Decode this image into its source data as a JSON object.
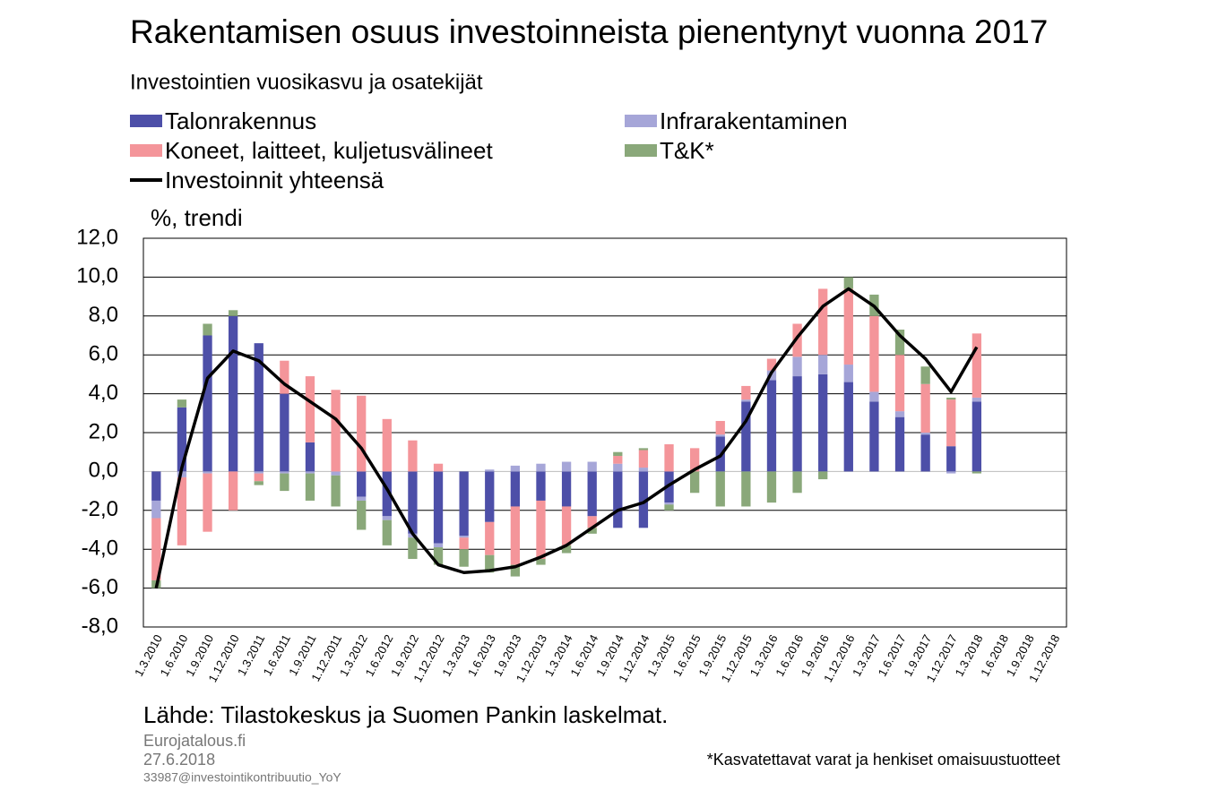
{
  "chart_data": {
    "type": "bar",
    "title": "Rakentamisen osuus investoinneista pienentynyt vuonna 2017",
    "subtitle": "Investointien vuosikasvu ja osatekijät",
    "y_label": "%, trendi",
    "source": "Lähde: Tilastokeskus ja Suomen Pankin laskelmat.",
    "publisher": "Eurojatalous.fi",
    "date": "27.6.2018",
    "code": "33987@investointikontribuutio_YoY",
    "footnote": "*Kasvatettavat varat ja henkiset omaisuustuotteet",
    "categories": [
      "1.3.2010",
      "1.6.2010",
      "1.9.2010",
      "1.12.2010",
      "1.3.2011",
      "1.6.2011",
      "1.9.2011",
      "1.12.2011",
      "1.3.2012",
      "1.6.2012",
      "1.9.2012",
      "1.12.2012",
      "1.3.2013",
      "1.6.2013",
      "1.9.2013",
      "1.12.2013",
      "1.3.2014",
      "1.6.2014",
      "1.9.2014",
      "1.12.2014",
      "1.3.2015",
      "1.6.2015",
      "1.9.2015",
      "1.12.2015",
      "1.3.2016",
      "1.6.2016",
      "1.9.2016",
      "1.12.2016",
      "1.3.2017",
      "1.6.2017",
      "1.9.2017",
      "1.12.2017",
      "1.3.2018",
      "1.6.2018",
      "1.9.2018",
      "1.12.2018"
    ],
    "series": [
      {
        "name": "Talonrakennus",
        "type": "bar",
        "color": "#4d4fa8",
        "values": [
          -1.5,
          3.3,
          7.0,
          8.0,
          6.6,
          4.0,
          1.5,
          0,
          -1.3,
          -2.3,
          -3.2,
          -3.7,
          -3.3,
          -2.6,
          -1.8,
          -1.5,
          -1.8,
          -2.3,
          -2.9,
          -2.9,
          -1.6,
          0,
          1.8,
          3.6,
          4.7,
          4.9,
          5.0,
          4.6,
          3.6,
          2.8,
          1.9,
          1.3,
          3.6,
          null,
          null,
          null
        ]
      },
      {
        "name": "Infrarakentaminen",
        "type": "bar",
        "color": "#a6a6d8",
        "values": [
          -0.9,
          -0.3,
          -0.1,
          0,
          -0.1,
          -0.1,
          -0.1,
          -0.2,
          -0.2,
          -0.2,
          -0.2,
          -0.2,
          -0.1,
          0.1,
          0.3,
          0.4,
          0.5,
          0.5,
          0.4,
          0.2,
          -0.1,
          0,
          0.1,
          0.1,
          0.5,
          1.0,
          1.0,
          0.9,
          0.5,
          0.3,
          0.1,
          -0.1,
          0.2,
          null,
          null,
          null
        ]
      },
      {
        "name": "Koneet, laitteet, kuljetusvälineet",
        "type": "bar",
        "color": "#f4959a",
        "values": [
          -3.2,
          -3.5,
          -3.0,
          -2.0,
          -0.4,
          1.7,
          3.4,
          4.2,
          3.9,
          2.7,
          1.6,
          0.4,
          -0.6,
          -1.7,
          -3.0,
          -3.0,
          -2.0,
          -0.6,
          0.4,
          0.9,
          1.4,
          1.2,
          0.7,
          0.7,
          0.6,
          1.7,
          3.4,
          3.9,
          3.9,
          2.9,
          2.5,
          2.4,
          3.3,
          null,
          null,
          null
        ]
      },
      {
        "name": "T&K*",
        "type": "bar",
        "color": "#8aa87a",
        "values": [
          -0.4,
          0.4,
          0.6,
          0.3,
          -0.2,
          -0.9,
          -1.4,
          -1.6,
          -1.5,
          -1.3,
          -1.1,
          -0.9,
          -0.9,
          -0.9,
          -0.6,
          -0.3,
          -0.4,
          -0.3,
          0.2,
          0.1,
          -0.3,
          -1.1,
          -1.8,
          -1.8,
          -1.6,
          -1.1,
          -0.4,
          0.6,
          1.1,
          1.3,
          0.9,
          0.1,
          -0.1,
          null,
          null,
          null
        ]
      },
      {
        "name": "Investoinnit yhteensä",
        "type": "line",
        "color": "#000000",
        "values": [
          -6.0,
          0.2,
          4.8,
          6.2,
          5.7,
          4.5,
          3.6,
          2.7,
          1.2,
          -0.9,
          -3.2,
          -4.8,
          -5.2,
          -5.1,
          -4.9,
          -4.4,
          -3.8,
          -2.9,
          -2.0,
          -1.6,
          -0.7,
          0.1,
          0.8,
          2.6,
          5.1,
          6.9,
          8.5,
          9.4,
          8.5,
          7.0,
          5.8,
          4.1,
          6.4,
          null,
          null,
          null
        ]
      }
    ],
    "ylim": [
      -8,
      12
    ],
    "yticks": [
      {
        "value": -8,
        "label": "-8,0"
      },
      {
        "value": -6,
        "label": "-6,0"
      },
      {
        "value": -4,
        "label": "-4,0"
      },
      {
        "value": -2,
        "label": "-2,0"
      },
      {
        "value": 0,
        "label": "0,0"
      },
      {
        "value": 2,
        "label": "2,0"
      },
      {
        "value": 4,
        "label": "4,0"
      },
      {
        "value": 6,
        "label": "6,0"
      },
      {
        "value": 8,
        "label": "8,0"
      },
      {
        "value": 10,
        "label": "10,0"
      },
      {
        "value": 12,
        "label": "12,0"
      }
    ],
    "grid": true
  }
}
